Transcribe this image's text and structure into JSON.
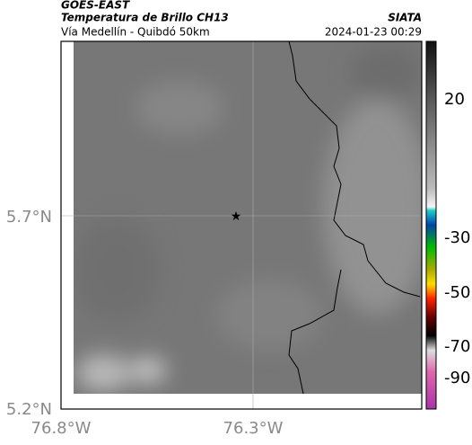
{
  "header": {
    "title": "GOES-EAST",
    "subtitle": "Temperatura de Brillo CH13",
    "location": "Vía Medellín - Quibdó 50km",
    "source": "SIATA",
    "datetime": "2024-01-23 00:29"
  },
  "map": {
    "lat_ticks": [
      "5.7°N",
      "5.2°N"
    ],
    "lon_ticks": [
      "76.8°W",
      "76.3°W"
    ]
  },
  "colorbar": {
    "ticks": [
      20,
      -30,
      -50,
      -70,
      -90
    ]
  }
}
